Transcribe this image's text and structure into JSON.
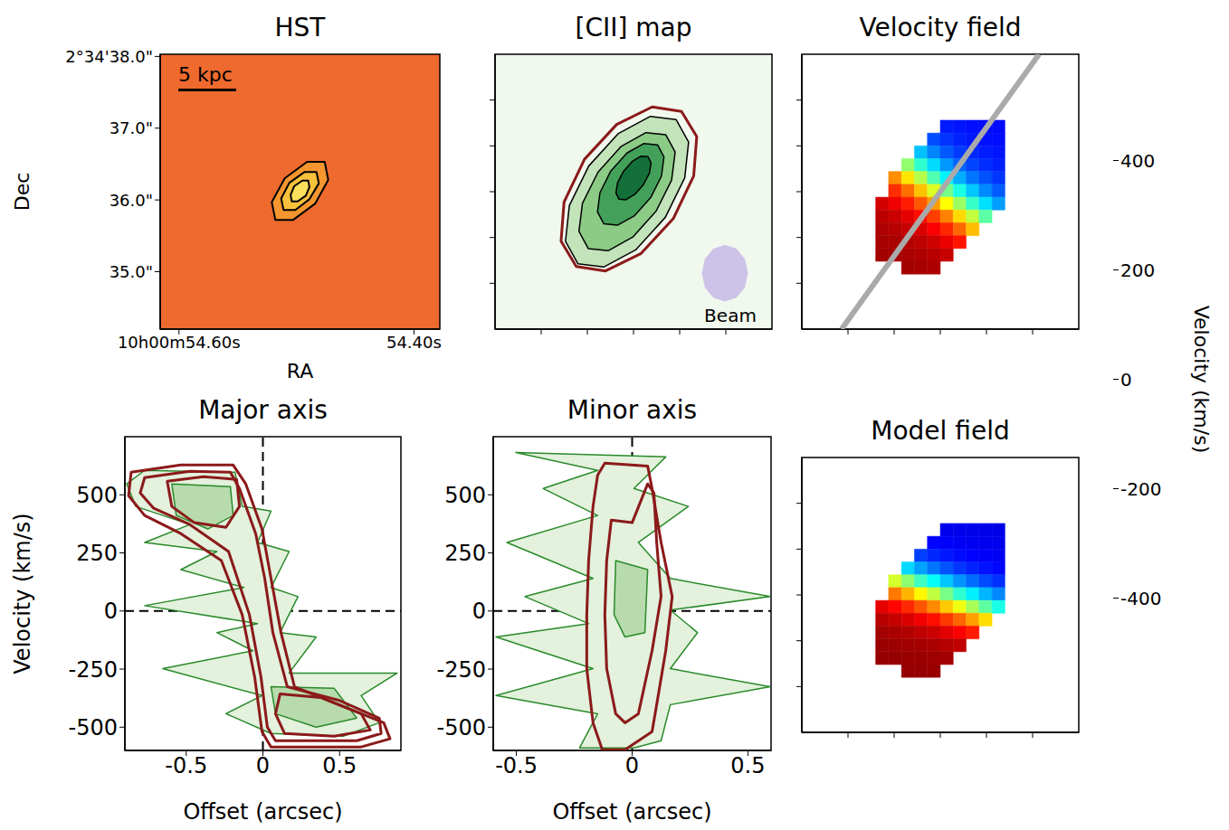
{
  "chart_data": [
    {
      "type": "contour",
      "title": "HST",
      "xlabel": "RA",
      "ylabel": "Dec",
      "annotation": "5 kpc",
      "xlim": [
        54.616,
        54.378
      ],
      "ylim": [
        34.2,
        38.03
      ],
      "xticks": [
        {
          "value": 54.6,
          "label": "10h00m54.60s"
        },
        {
          "value": 54.4,
          "label": "54.40s"
        }
      ],
      "yticks": [
        {
          "value": 38,
          "label": "2°34'38.0\""
        },
        {
          "value": 37,
          "label": "37.0\""
        },
        {
          "value": 36,
          "label": "36.0\""
        },
        {
          "value": 35,
          "label": "35.0\""
        }
      ],
      "contours": [
        {
          "color": "#000000",
          "x": [
            54.476,
            54.473,
            54.484,
            54.503,
            54.518,
            54.521,
            54.51,
            54.491
          ],
          "y": [
            36.53,
            36.28,
            35.95,
            35.72,
            35.72,
            35.97,
            36.3,
            36.53
          ]
        },
        {
          "color": "#000000",
          "x": [
            54.483,
            54.481,
            54.489,
            54.501,
            54.511,
            54.513,
            54.506,
            54.493
          ],
          "y": [
            36.39,
            36.23,
            36.01,
            35.86,
            35.86,
            36.02,
            36.24,
            36.39
          ]
        },
        {
          "color": "#000000",
          "x": [
            54.49,
            54.489,
            54.492,
            54.499,
            54.504,
            54.505,
            54.502,
            54.495
          ],
          "y": [
            36.27,
            36.18,
            36.06,
            35.98,
            35.98,
            36.07,
            36.19,
            36.27
          ]
        }
      ]
    },
    {
      "type": "contour",
      "title": "[CII] map",
      "tick_labels": false,
      "xlim": [
        -1.5,
        1.5
      ],
      "ylim": [
        -1.5,
        1.5
      ],
      "xticks": [
        -1,
        -0.5,
        0,
        0.5,
        1
      ],
      "yticks": [
        -1,
        -0.5,
        0,
        0.5,
        1
      ],
      "contours": [
        {
          "color": "#000000",
          "x": [
            0.461,
            0.183,
            -0.163,
            -0.485,
            -0.695,
            -0.737,
            -0.601,
            -0.323,
            0.023,
            0.345,
            0.555,
            0.597
          ],
          "y": [
            0.788,
            0.822,
            0.636,
            0.28,
            -0.152,
            -0.542,
            -0.788,
            -0.822,
            -0.636,
            -0.28,
            0.152,
            0.542
          ]
        },
        {
          "color": "#000000",
          "x": [
            0.349,
            0.135,
            -0.133,
            -0.385,
            -0.553,
            -0.591,
            -0.489,
            -0.275,
            -0.007,
            0.245,
            0.413,
            0.451
          ],
          "y": [
            0.622,
            0.645,
            0.495,
            0.212,
            -0.127,
            -0.433,
            -0.622,
            -0.645,
            -0.495,
            -0.212,
            0.127,
            0.433
          ]
        },
        {
          "color": "#000000",
          "x": [
            0.261,
            0.114,
            -0.071,
            -0.246,
            -0.363,
            -0.39,
            -0.321,
            -0.174,
            0.011,
            0.186,
            0.303,
            0.33
          ],
          "y": [
            0.511,
            0.526,
            0.422,
            0.225,
            -0.01,
            -0.22,
            -0.351,
            -0.366,
            -0.262,
            -0.065,
            0.17,
            0.38
          ]
        },
        {
          "color": "#000000",
          "x": [
            0.157,
            0.082,
            -0.015,
            -0.108,
            -0.173,
            -0.19,
            -0.157,
            -0.082,
            0.015,
            0.108,
            0.173,
            0.19
          ],
          "y": [
            0.382,
            0.388,
            0.329,
            0.223,
            0.097,
            -0.014,
            -0.082,
            -0.088,
            -0.029,
            0.077,
            0.203,
            0.314
          ]
        },
        {
          "color": "#8b1a1a",
          "x": [
            0.52,
            0.203,
            -0.182,
            -0.531,
            -0.752,
            -0.785,
            -0.62,
            -0.303,
            0.082,
            0.431,
            0.652,
            0.685
          ],
          "y": [
            0.876,
            0.925,
            0.734,
            0.354,
            -0.112,
            -0.541,
            -0.816,
            -0.865,
            -0.674,
            -0.294,
            0.172,
            0.601
          ]
        }
      ],
      "beam": {
        "label": "Beam",
        "color": "#cdc3e8",
        "x": [
          1.24,
          1.207,
          1.115,
          0.99,
          0.865,
          0.773,
          0.74,
          0.773,
          0.865,
          0.99,
          1.115,
          1.207
        ],
        "y": [
          -0.89,
          -0.735,
          -0.622,
          -0.58,
          -0.622,
          -0.735,
          -0.89,
          -1.045,
          -1.158,
          -1.2,
          -1.158,
          -1.045
        ]
      }
    },
    {
      "type": "heatmap",
      "title": "Velocity field",
      "tick_labels": false,
      "xlim": [
        -1.5,
        1.5
      ],
      "ylim": [
        -1.5,
        1.5
      ],
      "xticks": [
        -1,
        -0.5,
        0,
        0.5,
        1
      ],
      "yticks": [
        -1,
        -0.5,
        0,
        0.5,
        1
      ],
      "x_edges": [
        -0.7,
        -0.56,
        -0.42,
        -0.28,
        -0.14,
        0,
        0.14,
        0.28,
        0.42,
        0.56,
        0.7
      ],
      "y_edges": [
        0.78,
        0.64,
        0.5,
        0.36,
        0.22,
        0.08,
        -0.06,
        -0.2,
        -0.34,
        -0.48,
        -0.62,
        -0.76,
        -0.9
      ],
      "cells": [
        [
          null,
          null,
          null,
          null,
          null,
          -350,
          -355,
          -360,
          -365,
          -365
        ],
        [
          null,
          null,
          null,
          null,
          -300,
          -325,
          -343,
          -353,
          -359,
          -363
        ],
        [
          null,
          null,
          null,
          -185,
          -245,
          -288,
          -318,
          -336,
          -348,
          -356
        ],
        [
          null,
          null,
          17,
          -78,
          -160,
          -225,
          -277,
          -308,
          -331,
          -345
        ],
        [
          null,
          237,
          150,
          52,
          -47,
          -135,
          -205,
          -260,
          -295,
          -323
        ],
        [
          null,
          330,
          266,
          185,
          90,
          -10,
          -100,
          -180,
          -240,
          -285
        ],
        [
          418,
          390,
          348,
          290,
          222,
          125,
          28,
          -70,
          -155,
          -220
        ],
        [
          442,
          427,
          400,
          364,
          313,
          248,
          162,
          65,
          -35,
          null
        ],
        [
          455,
          446,
          432,
          412,
          380,
          337,
          273,
          190,
          null,
          null
        ],
        [
          462,
          457,
          450,
          438,
          422,
          394,
          355,
          null,
          null,
          null
        ],
        [
          465,
          463,
          458,
          453,
          444,
          430,
          null,
          null,
          null,
          null
        ],
        [
          null,
          null,
          465,
          461,
          456,
          null,
          null,
          null,
          null,
          null
        ]
      ],
      "major_axis": {
        "color": "#aaaaaa",
        "x": [
          -1.07,
          1.07
        ],
        "y": [
          -1.5,
          1.5
        ]
      },
      "colorbar": {
        "label": "Velocity (km/s)",
        "range": [
          -500,
          500
        ],
        "ticks": [
          -400,
          -200,
          0,
          200,
          400
        ]
      }
    },
    {
      "type": "contour",
      "title": "Major axis",
      "xlabel": "Offset (arcsec)",
      "ylabel": "Velocity (km/s)",
      "xlim": [
        -0.9,
        0.9
      ],
      "ylim": [
        -600,
        750
      ],
      "xticks": [
        -0.5,
        0,
        0.5
      ],
      "yticks": [
        -500,
        -250,
        0,
        250,
        500
      ],
      "zero_lines": {
        "x": 0,
        "y": 0
      },
      "contours": [
        {
          "color": "#2a8a2a",
          "x": [
            -0.771,
            -0.182,
            -0.135,
            0.053,
            -0.035,
            0.171,
            0.053,
            0.229,
            0.112,
            0.347,
            0.171,
            0.876,
            0.641,
            0.759,
            0.524,
            0.053,
            -0.241,
            -0.006,
            -0.653,
            -0.065,
            -0.3,
            -0.035,
            -0.771,
            -0.124,
            -0.535,
            -0.3,
            -0.771,
            -0.476,
            -0.829,
            -0.888
          ],
          "y": [
            605,
            597,
            450,
            430,
            295,
            256,
            101,
            62,
            -93,
            -112,
            -267,
            -267,
            -364,
            -481,
            -539,
            -527,
            -442,
            -364,
            -248,
            -171,
            -93,
            -54,
            23,
            101,
            178,
            256,
            295,
            372,
            450,
            547
          ]
        },
        {
          "color": "#2a8a2a",
          "x": [
            -0.594,
            -0.212,
            -0.194,
            -0.359,
            -0.565
          ],
          "y": [
            547,
            535,
            411,
            353,
            411
          ]
        },
        {
          "color": "#2a8a2a",
          "x": [
            0.053,
            0.465,
            0.612,
            0.347,
            0.082
          ],
          "y": [
            -326,
            -333,
            -461,
            -500,
            -442
          ]
        },
        {
          "color": "#8b1a1a",
          "x": [
            -0.859,
            -0.535,
            -0.194,
            -0.112,
            -0.006,
            0.053,
            0.118,
            0.206,
            0.524,
            0.788,
            0.829,
            0.641,
            0.053,
            -0.006,
            -0.053,
            -0.135,
            -0.271,
            -0.535,
            -0.771,
            -0.876
          ],
          "y": [
            597,
            628,
            628,
            547,
            353,
            140,
            -93,
            -326,
            -411,
            -481,
            -550,
            -585,
            -585,
            -519,
            -287,
            -16,
            217,
            333,
            411,
            496
          ]
        },
        {
          "color": "#8b1a1a",
          "x": [
            -0.771,
            -0.476,
            -0.212,
            -0.153,
            -0.047,
            0.012,
            0.065,
            0.159,
            0.494,
            0.759,
            0.771,
            0.612,
            0.082,
            0.029,
            -0.012,
            -0.088,
            -0.224,
            -0.476,
            -0.712,
            -0.8
          ],
          "y": [
            574,
            601,
            597,
            527,
            333,
            140,
            -93,
            -326,
            -384,
            -461,
            -527,
            -558,
            -558,
            -500,
            -287,
            -16,
            256,
            372,
            442,
            508
          ]
        },
        {
          "color": "#8b1a1a",
          "x": [
            -0.624,
            -0.388,
            -0.171,
            -0.153,
            -0.241,
            -0.447,
            -0.594
          ],
          "y": [
            558,
            578,
            566,
            450,
            360,
            380,
            450
          ]
        },
        {
          "color": "#8b1a1a",
          "x": [
            0.112,
            0.376,
            0.641,
            0.7,
            0.465,
            0.141,
            0.082
          ],
          "y": [
            -357,
            -372,
            -442,
            -512,
            -539,
            -527,
            -442
          ]
        }
      ]
    },
    {
      "type": "contour",
      "title": "Minor axis",
      "xlabel": "Offset (arcsec)",
      "xlim": [
        -0.6,
        0.6
      ],
      "ylim": [
        -600,
        750
      ],
      "xticks": [
        -0.5,
        0,
        0.5
      ],
      "yticks": [
        -500,
        -250,
        0,
        250,
        500
      ],
      "zero_lines": {
        "x": 0,
        "y": 0
      },
      "contours": [
        {
          "color": "#2a8a2a",
          "x": [
            -0.502,
            0.145,
            0.008,
            0.243,
            0.027,
            0.165,
            0.596,
            0.165,
            0.282,
            0.165,
            0.596,
            0.165,
            0.125,
            0.008,
            -0.227,
            -0.149,
            -0.588,
            -0.169,
            -0.588,
            -0.188,
            -0.463,
            -0.169,
            -0.541,
            -0.149,
            -0.384,
            -0.149
          ],
          "y": [
            682,
            663,
            527,
            450,
            295,
            140,
            62,
            4,
            -93,
            -248,
            -326,
            -403,
            -558,
            -589,
            -589,
            -442,
            -364,
            -248,
            -112,
            -54,
            62,
            140,
            295,
            411,
            527,
            605
          ]
        },
        {
          "color": "#2a8a2a",
          "x": [
            -0.071,
            0.067,
            0.055,
            -0.031,
            -0.078
          ],
          "y": [
            217,
            178,
            -93,
            -112,
            -16
          ]
        },
        {
          "color": "#8b1a1a",
          "x": [
            -0.118,
            0.067,
            0.086,
            0.125,
            0.173,
            0.145,
            0.106,
            0.086,
            -0.031,
            -0.129,
            -0.169,
            -0.196,
            -0.196,
            -0.188,
            -0.169,
            -0.149
          ],
          "y": [
            636,
            624,
            527,
            295,
            62,
            -171,
            -403,
            -519,
            -597,
            -597,
            -481,
            -248,
            -16,
            217,
            450,
            585
          ]
        },
        {
          "color": "#8b1a1a",
          "x": [
            -0.09,
            0,
            0.067,
            0.094,
            0.106,
            0.125,
            0.086,
            0.027,
            -0.031,
            -0.071,
            -0.11,
            -0.118,
            -0.11
          ],
          "y": [
            391,
            380,
            547,
            508,
            295,
            62,
            -171,
            -442,
            -481,
            -442,
            -248,
            -16,
            217
          ]
        }
      ]
    },
    {
      "type": "heatmap",
      "title": "Model field",
      "tick_labels": false,
      "xlim": [
        -1.5,
        1.5
      ],
      "ylim": [
        -1.5,
        1.5
      ],
      "xticks": [
        -1,
        -0.5,
        0,
        0.5,
        1
      ],
      "yticks": [
        -1,
        -0.5,
        0,
        0.5,
        1
      ],
      "x_edges": [
        -0.7,
        -0.56,
        -0.42,
        -0.28,
        -0.14,
        0,
        0.14,
        0.28,
        0.42,
        0.56,
        0.7
      ],
      "y_edges": [
        0.78,
        0.64,
        0.5,
        0.36,
        0.22,
        0.08,
        -0.06,
        -0.2,
        -0.34,
        -0.48,
        -0.62,
        -0.76,
        -0.9
      ],
      "cells": [
        [
          null,
          null,
          null,
          null,
          null,
          -391,
          -394,
          -396,
          -397,
          -398
        ],
        [
          null,
          null,
          null,
          null,
          -372,
          -379,
          -385,
          -389,
          -392,
          -394
        ],
        [
          null,
          null,
          null,
          -313,
          -337,
          -352,
          -365,
          -374,
          -381,
          -386
        ],
        [
          null,
          null,
          -163,
          -216,
          -260,
          -294,
          -322,
          -342,
          -357,
          -369
        ],
        [
          null,
          84,
          14,
          -64,
          -121,
          -180,
          -230,
          -268,
          -302,
          -328
        ],
        [
          null,
          256,
          199,
          132,
          63,
          -8,
          -80,
          -140,
          -197,
          -242
        ],
        [
          400,
          371,
          336,
          293,
          240,
          177,
          110,
          39,
          -33,
          -100
        ],
        [
          444,
          430,
          412,
          390,
          361,
          320,
          276,
          219,
          158,
          null
        ],
        [
          465,
          458,
          451,
          439,
          426,
          403,
          380,
          349,
          null,
          null
        ],
        [
          474,
          471,
          468,
          463,
          457,
          449,
          437,
          null,
          null,
          null
        ],
        [
          478,
          477,
          475,
          473,
          470,
          466,
          null,
          null,
          null,
          null
        ],
        [
          null,
          null,
          478,
          477,
          476,
          null,
          null,
          null,
          null,
          null
        ]
      ]
    }
  ]
}
